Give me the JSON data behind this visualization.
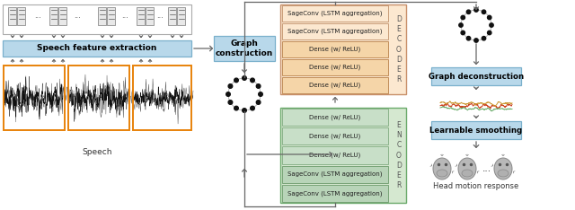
{
  "fig_width": 6.4,
  "fig_height": 2.34,
  "dpi": 100,
  "bg_color": "#ffffff",
  "decoder_color": "#fce8d0",
  "encoder_color": "#d5e8d0",
  "graph_box_color": "#b8d8ea",
  "feature_box_color": "#b8d8ea",
  "smooth_box_color": "#b8d8ea",
  "decon_box_color": "#b8d8ea",
  "decoder_layers": [
    "SageConv (LSTM aggregation)",
    "SageConv (LSTM aggregation)",
    "Dense (w/ ReLU)",
    "Dense (w/ ReLU)",
    "Dense (w/ ReLU)"
  ],
  "encoder_layers": [
    "Dense (w/ ReLU)",
    "Dense (w/ ReLU)",
    "Dense (w/ ReLU)",
    "SageConv (LSTM aggregation)",
    "SageConv (LSTM aggregation)"
  ],
  "decoder_label": "D\nE\nC\nO\nD\nE\nR",
  "encoder_label": "E\nN\nC\nO\nD\nE\nR",
  "graph_construction_label": "Graph\nconstruction",
  "graph_deconstruction_label": "Graph deconstruction",
  "speech_feature_label": "Speech feature extraction",
  "learnable_smoothing_label": "Learnable smoothing",
  "speech_label": "Speech",
  "head_motion_label": "Head motion response",
  "arrow_color": "#666666",
  "node_color": "#111111",
  "dec_sage_color": "#fce8d0",
  "dec_dense_color": "#f5d5a8",
  "enc_dense_color": "#c8dfc8",
  "enc_sage_color": "#b8d4b8"
}
